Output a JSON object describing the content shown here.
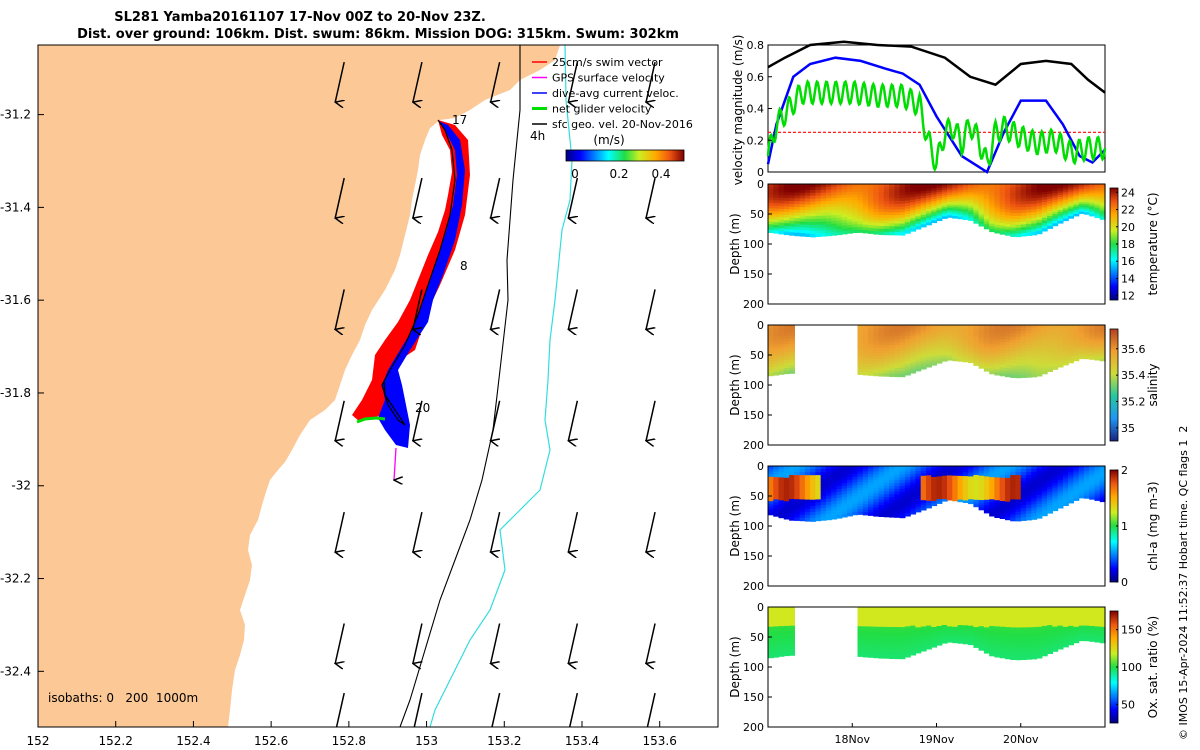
{
  "title": {
    "line1": "SL281 Yamba20161107 17-Nov 00Z to 20-Nov 23Z.",
    "line2": "Dist. over ground: 106km. Dist. swum: 86km. Mission DOG: 315km. Swum: 302km"
  },
  "colors": {
    "land": "#fbc896",
    "swath_red": "#ff0000",
    "swath_blue": "#0000ff",
    "gps_magenta": "#ff00ff",
    "net_green": "#00dd00",
    "isobath_cyan": "#33dddd"
  },
  "chart_data": [
    {
      "type": "map",
      "xticks": [
        "152",
        "152.2",
        "152.4",
        "152.6",
        "152.8",
        "153",
        "153.2",
        "153.4",
        "153.6"
      ],
      "yticks": [
        "-31.2",
        "-31.4",
        "-31.6",
        "-31.8",
        "-32",
        "-32.2",
        "-32.4"
      ],
      "xlim": [
        152,
        153.75
      ],
      "ylim": [
        -32.52,
        -31.05
      ],
      "legend": [
        {
          "label": "25cm/s swim vector",
          "color": "#ff0000"
        },
        {
          "label": "GPS surface velocity",
          "color": "#ff00ff"
        },
        {
          "label": "dive-avg current veloc.",
          "color": "#0000ff"
        },
        {
          "label": "net glider velocity",
          "color": "#00dd00"
        },
        {
          "label": "sfc geo. vel. 20-Nov-2016",
          "color": "#000000"
        }
      ],
      "colorbar": {
        "label": "(m/s)",
        "ticks": [
          "0",
          "0.2",
          "0.4"
        ],
        "range": [
          0,
          0.5
        ]
      },
      "day_labels": [
        "17",
        "4h",
        "8",
        "20"
      ],
      "isobaths_label": "isobaths: 0   200  1000m",
      "vector_grid": {
        "lons": [
          152.77,
          152.97,
          153.17,
          153.37,
          153.57
        ],
        "lats": [
          -31.13,
          -31.38,
          -31.62,
          -31.86,
          -32.1,
          -32.34,
          -32.49
        ]
      }
    },
    {
      "type": "line",
      "ylabel": "velocity magnitude (m/s)",
      "ylim": [
        0,
        0.8
      ],
      "yticks": [
        "0",
        "0.2",
        "0.4",
        "0.6",
        "0.8"
      ],
      "xlim": [
        0,
        4
      ],
      "reference_line": 0.25,
      "series": [
        {
          "name": "sfc geo. vel.",
          "color": "#000000",
          "x": [
            0,
            0.2,
            0.5,
            0.9,
            1.3,
            1.7,
            2.1,
            2.4,
            2.7,
            3.0,
            3.3,
            3.6,
            3.8,
            4.0
          ],
          "values": [
            0.66,
            0.72,
            0.8,
            0.82,
            0.8,
            0.79,
            0.72,
            0.6,
            0.55,
            0.68,
            0.7,
            0.68,
            0.58,
            0.5
          ]
        },
        {
          "name": "dive-avg current",
          "color": "#0000ff",
          "x": [
            0,
            0.1,
            0.3,
            0.5,
            0.8,
            1.1,
            1.4,
            1.6,
            1.8,
            2.0,
            2.3,
            2.6,
            2.8,
            3.0,
            3.3,
            3.5,
            3.7,
            3.85,
            4.0
          ],
          "values": [
            0.05,
            0.3,
            0.6,
            0.68,
            0.72,
            0.7,
            0.65,
            0.62,
            0.55,
            0.35,
            0.1,
            0.0,
            0.25,
            0.45,
            0.45,
            0.3,
            0.1,
            0.06,
            0.14
          ]
        },
        {
          "name": "net glider velocity",
          "color": "#00dd00",
          "x": [
            0,
            0.1,
            0.4,
            0.7,
            1.0,
            1.3,
            1.6,
            1.8,
            1.9,
            2.0,
            2.1,
            2.2,
            2.3,
            2.4,
            2.5,
            2.6,
            2.7,
            2.8,
            3.0,
            3.2,
            3.4,
            3.6,
            3.8,
            4.0
          ],
          "values": [
            0.1,
            0.3,
            0.5,
            0.5,
            0.5,
            0.48,
            0.48,
            0.42,
            0.2,
            0.05,
            0.25,
            0.28,
            0.18,
            0.3,
            0.2,
            0.05,
            0.25,
            0.28,
            0.22,
            0.18,
            0.2,
            0.12,
            0.15,
            0.15
          ]
        }
      ]
    },
    {
      "type": "heatmap",
      "ylabel": "Depth (m)",
      "yticks": [
        "0",
        "50",
        "100",
        "150",
        "200"
      ],
      "ylim": [
        0,
        200
      ],
      "colorbar": {
        "label": "temperature (°C)",
        "ticks": [
          "24",
          "22",
          "20",
          "18",
          "16",
          "14",
          "12"
        ],
        "range": [
          11.5,
          24.5
        ]
      },
      "data_start_day": 0,
      "data_end_day": 4,
      "gap": null,
      "bottom_depth": [
        80,
        85,
        88,
        85,
        80,
        84,
        85,
        70,
        55,
        60,
        80,
        88,
        84,
        65,
        48,
        60
      ],
      "surface_value": 23.5,
      "bottom_value": 16
    },
    {
      "type": "heatmap",
      "ylabel": "Depth (m)",
      "yticks": [
        "0",
        "50",
        "100",
        "150",
        "200"
      ],
      "ylim": [
        0,
        200
      ],
      "colorbar": {
        "label": "salinity",
        "ticks": [
          "35.6",
          "35.4",
          "35.2",
          "35"
        ],
        "range": [
          34.9,
          35.75
        ]
      },
      "data_start_day": 1.05,
      "data_end_day": 4,
      "gap": [
        0.33,
        1.05
      ],
      "bottom_depth": [
        85,
        80,
        84,
        85,
        82,
        85,
        86,
        72,
        58,
        62,
        82,
        88,
        86,
        70,
        55,
        60
      ],
      "surface_value": 35.6,
      "bottom_value": 35.35
    },
    {
      "type": "heatmap",
      "ylabel": "Depth (m)",
      "yticks": [
        "0",
        "50",
        "100",
        "150",
        "200"
      ],
      "ylim": [
        0,
        200
      ],
      "colorbar": {
        "label": "chl-a (mg m-3)",
        "ticks": [
          "2",
          "1",
          "0"
        ],
        "range": [
          0,
          2
        ]
      },
      "data_start_day": 0,
      "data_end_day": 4,
      "gap": null,
      "bottom_depth": [
        80,
        90,
        92,
        88,
        80,
        84,
        86,
        72,
        56,
        62,
        84,
        92,
        88,
        70,
        52,
        60
      ],
      "surface_value": 0.4,
      "bottom_value": 0.3
    },
    {
      "type": "heatmap",
      "ylabel": "Depth (m)",
      "yticks": [
        "0",
        "50",
        "100",
        "150",
        "200"
      ],
      "ylim": [
        0,
        200
      ],
      "colorbar": {
        "label": "Ox. sat. ratio (%)",
        "ticks": [
          "150",
          "100",
          "50"
        ],
        "range": [
          25,
          175
        ]
      },
      "data_start_day": 1.05,
      "data_end_day": 4,
      "gap": [
        0.33,
        1.05
      ],
      "bottom_depth": [
        85,
        80,
        84,
        85,
        82,
        85,
        86,
        72,
        58,
        62,
        82,
        88,
        86,
        70,
        55,
        60
      ],
      "surface_value": 115,
      "bottom_value": 95
    }
  ],
  "time_axis": {
    "labels": [
      "18Nov",
      "19Nov",
      "20Nov"
    ],
    "positions": [
      1,
      2,
      3
    ],
    "range": [
      0,
      4
    ]
  },
  "side_caption": "© IMOS 15-Apr-2024 11:52:37 Hobart time. QC flags 1  2"
}
